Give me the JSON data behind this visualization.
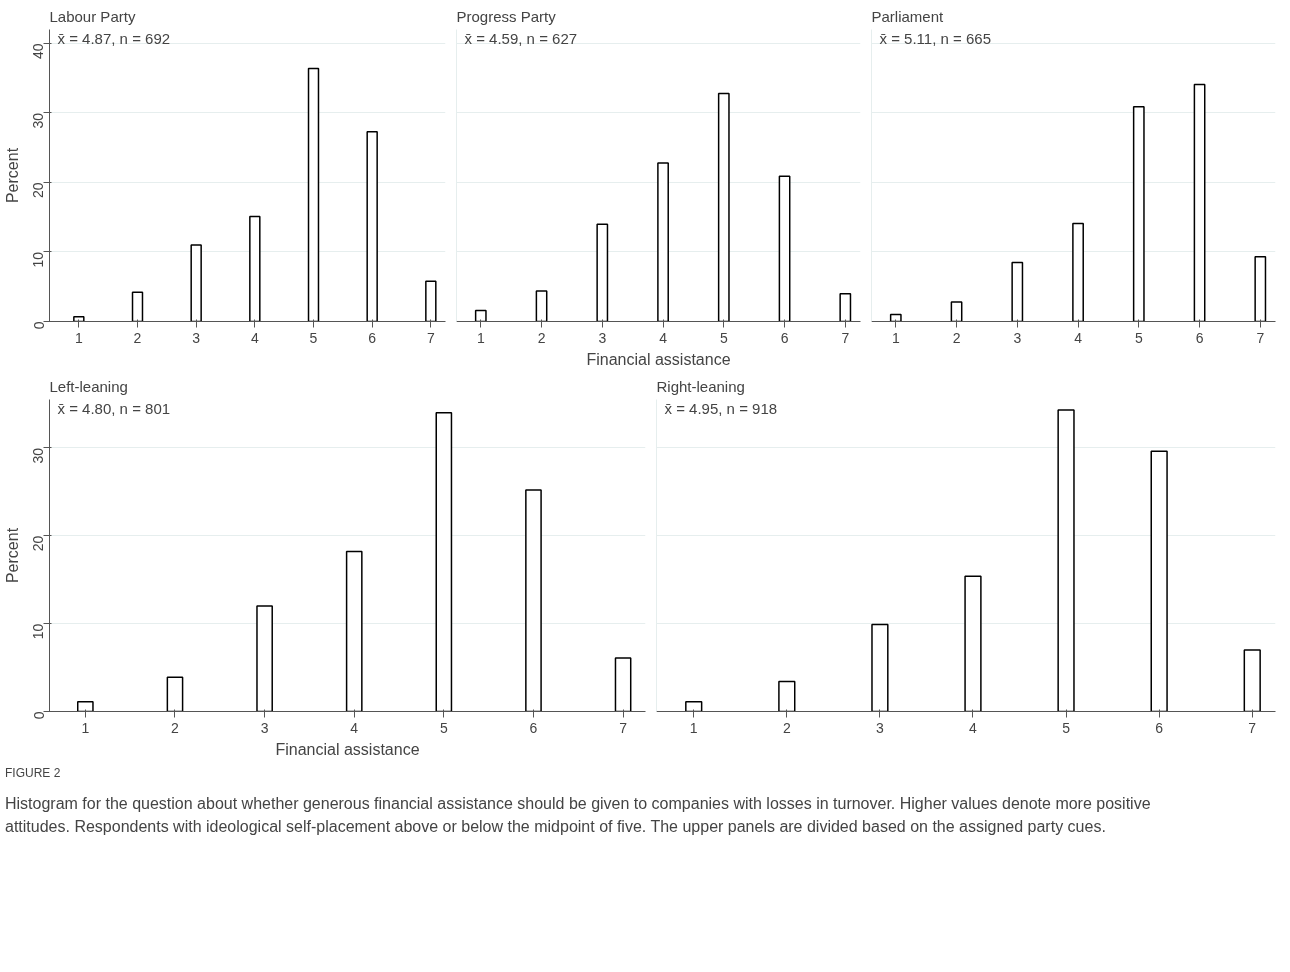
{
  "chart_data": [
    {
      "type": "bar",
      "title": "Labour Party",
      "ylabel": "Percent",
      "x": [
        1,
        2,
        3,
        4,
        5,
        6,
        7
      ],
      "values": [
        0.7,
        4.2,
        11.0,
        15.1,
        36.4,
        27.3,
        5.8
      ],
      "color": "#ffffff",
      "xlim": [
        0.5,
        7.25
      ],
      "ylim": [
        0,
        42
      ],
      "xticks": [
        1,
        2,
        3,
        4,
        5,
        6,
        7
      ],
      "yticks": [
        0,
        10,
        20,
        30,
        40
      ],
      "grid": "y",
      "annotations": [
        "x̄ = 4.87, n = 692"
      ]
    },
    {
      "type": "bar",
      "title": "Progress Party",
      "xlabel": "Financial assistance",
      "x": [
        1,
        2,
        3,
        4,
        5,
        6,
        7
      ],
      "values": [
        1.6,
        4.4,
        14.0,
        22.8,
        32.8,
        20.9,
        4.0
      ],
      "color": "#ffffff",
      "xlim": [
        0.6,
        7.25
      ],
      "ylim": [
        0,
        42
      ],
      "xticks": [
        1,
        2,
        3,
        4,
        5,
        6,
        7
      ],
      "yticks": [
        0,
        10,
        20,
        30,
        40
      ],
      "grid": "y",
      "tick_labels": "x",
      "annotations": [
        "x̄ = 4.59, n = 627"
      ]
    },
    {
      "type": "bar",
      "title": "Parliament",
      "x": [
        1,
        2,
        3,
        4,
        5,
        6,
        7
      ],
      "values": [
        1.0,
        2.8,
        8.5,
        14.1,
        30.9,
        34.1,
        9.3
      ],
      "color": "#ffffff",
      "xlim": [
        0.6,
        7.25
      ],
      "ylim": [
        0,
        42
      ],
      "xticks": [
        1,
        2,
        3,
        4,
        5,
        6,
        7
      ],
      "yticks": [
        0,
        10,
        20,
        30,
        40
      ],
      "grid": "y",
      "tick_labels": "x",
      "annotations": [
        "x̄ = 5.11, n = 665"
      ]
    },
    {
      "type": "bar",
      "title": "Left-leaning",
      "ylabel": "Percent",
      "xlabel": "Financial assistance",
      "x": [
        1,
        2,
        3,
        4,
        5,
        6,
        7
      ],
      "values": [
        1.1,
        3.9,
        12.0,
        18.2,
        34.0,
        25.2,
        6.1
      ],
      "color": "#ffffff",
      "xlim": [
        0.6,
        7.25
      ],
      "ylim": [
        0,
        35.5
      ],
      "xticks": [
        1,
        2,
        3,
        4,
        5,
        6,
        7
      ],
      "yticks": [
        0,
        10,
        20,
        30
      ],
      "grid": "y",
      "annotations": [
        "x̄ = 4.80, n = 801"
      ]
    },
    {
      "type": "bar",
      "title": "Right-leaning",
      "x": [
        1,
        2,
        3,
        4,
        5,
        6,
        7
      ],
      "values": [
        1.1,
        3.4,
        9.9,
        15.4,
        34.3,
        29.6,
        7.0
      ],
      "color": "#ffffff",
      "xlim": [
        0.6,
        7.25
      ],
      "ylim": [
        0,
        35.5
      ],
      "xticks": [
        1,
        2,
        3,
        4,
        5,
        6,
        7
      ],
      "yticks": [
        0,
        10,
        20,
        30
      ],
      "grid": "y",
      "tick_labels": "x",
      "annotations": [
        "x̄ = 4.95, n = 918",
        "FIGURE 2",
        "Histogram for the question about whether generous financial assistance should be given to companies with losses in turnover. Higher values denote more positive attitudes. Respondents with ideological self-placement above or below the midpoint of five. The upper panels are divided based on the assigned party cues."
      ]
    }
  ]
}
